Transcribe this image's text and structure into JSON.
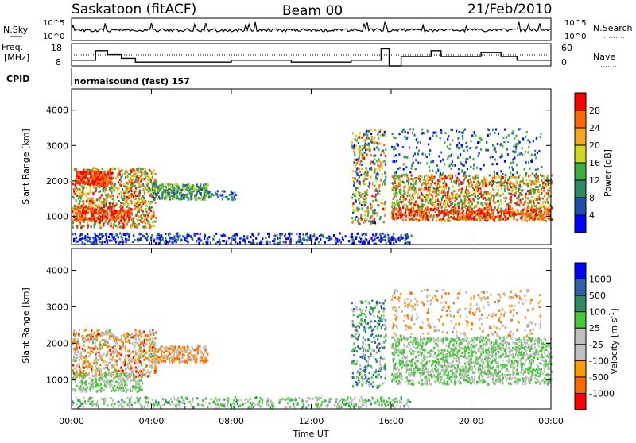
{
  "header": {
    "station": "Saskatoon (fitACF)",
    "beam": "Beam 00",
    "date": "21/Feb/2010"
  },
  "top_panels": {
    "nsky_label": "N.Sky",
    "nsky_ticks": [
      "10^5",
      "10^0"
    ],
    "nsearch_label": "N.Search",
    "nsearch_ticks": [
      "10^5",
      "10^0"
    ],
    "freq_label_1": "Freq.",
    "freq_label_2": "[MHz]",
    "freq_ticks": [
      "18",
      "8"
    ],
    "nave_label": "Nave",
    "nave_ticks": [
      "60",
      "0"
    ],
    "cpid_label": "CPID",
    "cpid_value": "normalsound (fast) 157"
  },
  "chart_data": [
    {
      "type": "heatmap",
      "title": "",
      "ylabel": "Slant Range [km]",
      "ylim": [
        200,
        4600
      ],
      "yticks": [
        "1000",
        "2000",
        "3000",
        "4000"
      ],
      "colorbar_label": "Power [dB]",
      "colorbar_ticks": [
        "4",
        "8",
        "12",
        "16",
        "20",
        "24",
        "28"
      ],
      "colors": [
        "#0000ff",
        "#1f4fa8",
        "#2e8a62",
        "#3fae3f",
        "#cfd820",
        "#f5a623",
        "#ff6a00",
        "#ff0000"
      ]
    },
    {
      "type": "heatmap",
      "title": "",
      "xlabel": "Time UT",
      "ylabel": "Slant Range [km]",
      "ylim": [
        200,
        4600
      ],
      "yticks": [
        "1000",
        "2000",
        "3000",
        "4000"
      ],
      "xticks": [
        "00:00",
        "04:00",
        "08:00",
        "12:00",
        "16:00",
        "20:00",
        "00:00"
      ],
      "colorbar_label": "Velocity [m s^-1]",
      "colorbar_ticks": [
        "1000",
        "500",
        "100",
        "25",
        "-25",
        "-100",
        "-500",
        "-1000"
      ],
      "colors": [
        "#0000ff",
        "#2e5fa8",
        "#2e8a62",
        "#46c83a",
        "#bfbfbf",
        "#bfbfbf",
        "#ff9a00",
        "#ff6a00",
        "#ff0000"
      ]
    }
  ]
}
